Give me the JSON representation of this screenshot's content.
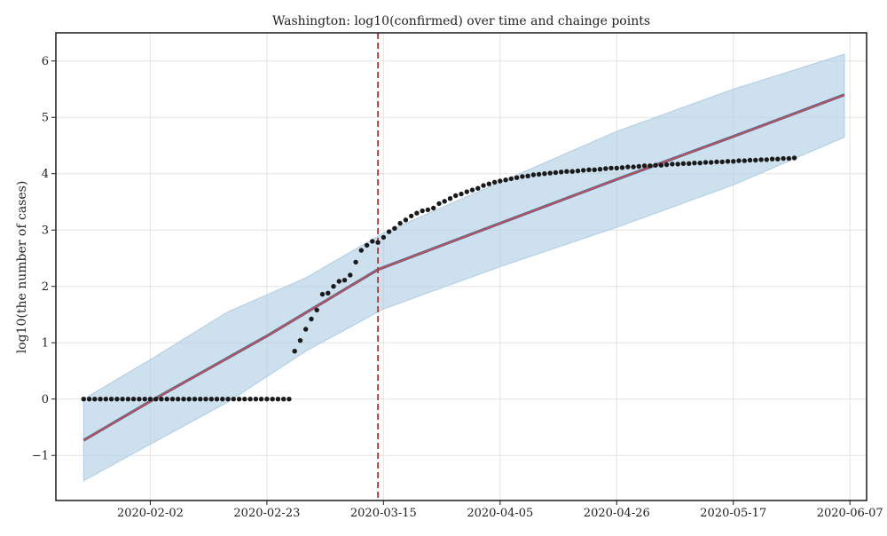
{
  "chart_data": {
    "type": "line",
    "title": "Washington: log10(confirmed) over time and chainge points",
    "xlabel": "",
    "ylabel": "log10(the number of cases)",
    "x_range": [
      "2020-01-21",
      "2020-06-06"
    ],
    "x_axis_domain": [
      "2020-01-16",
      "2020-06-10"
    ],
    "ylim": [
      -1.8,
      6.5
    ],
    "x_ticks": [
      "2020-02-02",
      "2020-02-23",
      "2020-03-15",
      "2020-04-05",
      "2020-04-26",
      "2020-05-17",
      "2020-06-07"
    ],
    "y_ticks": [
      -1,
      0,
      1,
      2,
      3,
      4,
      5,
      6
    ],
    "y_tick_labels": [
      "−1",
      "0",
      "1",
      "2",
      "3",
      "4",
      "5",
      "6"
    ],
    "grid": true,
    "changepoint_date": "2020-03-14",
    "series": [
      {
        "name": "",
        "kind": "scatter",
        "color": "#1a1a1a",
        "points": [
          [
            "2020-01-21",
            0
          ],
          [
            "2020-01-22",
            0
          ],
          [
            "2020-01-23",
            0
          ],
          [
            "2020-01-24",
            0
          ],
          [
            "2020-01-25",
            0
          ],
          [
            "2020-01-26",
            0
          ],
          [
            "2020-01-27",
            0
          ],
          [
            "2020-01-28",
            0
          ],
          [
            "2020-01-29",
            0
          ],
          [
            "2020-01-30",
            0
          ],
          [
            "2020-01-31",
            0
          ],
          [
            "2020-02-01",
            0
          ],
          [
            "2020-02-02",
            0
          ],
          [
            "2020-02-03",
            0
          ],
          [
            "2020-02-04",
            0
          ],
          [
            "2020-02-05",
            0
          ],
          [
            "2020-02-06",
            0
          ],
          [
            "2020-02-07",
            0
          ],
          [
            "2020-02-08",
            0
          ],
          [
            "2020-02-09",
            0
          ],
          [
            "2020-02-10",
            0
          ],
          [
            "2020-02-11",
            0
          ],
          [
            "2020-02-12",
            0
          ],
          [
            "2020-02-13",
            0
          ],
          [
            "2020-02-14",
            0
          ],
          [
            "2020-02-15",
            0
          ],
          [
            "2020-02-16",
            0
          ],
          [
            "2020-02-17",
            0
          ],
          [
            "2020-02-18",
            0
          ],
          [
            "2020-02-19",
            0
          ],
          [
            "2020-02-20",
            0
          ],
          [
            "2020-02-21",
            0
          ],
          [
            "2020-02-22",
            0
          ],
          [
            "2020-02-23",
            0
          ],
          [
            "2020-02-24",
            0
          ],
          [
            "2020-02-25",
            0
          ],
          [
            "2020-02-26",
            0
          ],
          [
            "2020-02-27",
            0
          ],
          [
            "2020-02-28",
            0.85
          ],
          [
            "2020-02-29",
            1.04
          ],
          [
            "2020-03-01",
            1.24
          ],
          [
            "2020-03-02",
            1.42
          ],
          [
            "2020-03-03",
            1.58
          ],
          [
            "2020-03-04",
            1.86
          ],
          [
            "2020-03-05",
            1.88
          ],
          [
            "2020-03-06",
            2.0
          ],
          [
            "2020-03-07",
            2.09
          ],
          [
            "2020-03-08",
            2.11
          ],
          [
            "2020-03-09",
            2.2
          ],
          [
            "2020-03-10",
            2.43
          ],
          [
            "2020-03-11",
            2.64
          ],
          [
            "2020-03-12",
            2.73
          ],
          [
            "2020-03-13",
            2.8
          ],
          [
            "2020-03-14",
            2.78
          ],
          [
            "2020-03-15",
            2.87
          ],
          [
            "2020-03-16",
            2.97
          ],
          [
            "2020-03-17",
            3.03
          ],
          [
            "2020-03-18",
            3.12
          ],
          [
            "2020-03-19",
            3.18
          ],
          [
            "2020-03-20",
            3.25
          ],
          [
            "2020-03-21",
            3.3
          ],
          [
            "2020-03-22",
            3.34
          ],
          [
            "2020-03-23",
            3.36
          ],
          [
            "2020-03-24",
            3.39
          ],
          [
            "2020-03-25",
            3.47
          ],
          [
            "2020-03-26",
            3.51
          ],
          [
            "2020-03-27",
            3.56
          ],
          [
            "2020-03-28",
            3.61
          ],
          [
            "2020-03-29",
            3.64
          ],
          [
            "2020-03-30",
            3.68
          ],
          [
            "2020-03-31",
            3.71
          ],
          [
            "2020-04-01",
            3.74
          ],
          [
            "2020-04-02",
            3.79
          ],
          [
            "2020-04-03",
            3.82
          ],
          [
            "2020-04-04",
            3.85
          ],
          [
            "2020-04-05",
            3.87
          ],
          [
            "2020-04-06",
            3.89
          ],
          [
            "2020-04-07",
            3.91
          ],
          [
            "2020-04-08",
            3.93
          ],
          [
            "2020-04-09",
            3.95
          ],
          [
            "2020-04-10",
            3.96
          ],
          [
            "2020-04-11",
            3.98
          ],
          [
            "2020-04-12",
            3.99
          ],
          [
            "2020-04-13",
            4.0
          ],
          [
            "2020-04-14",
            4.01
          ],
          [
            "2020-04-15",
            4.02
          ],
          [
            "2020-04-16",
            4.03
          ],
          [
            "2020-04-17",
            4.04
          ],
          [
            "2020-04-18",
            4.04
          ],
          [
            "2020-04-19",
            4.05
          ],
          [
            "2020-04-20",
            4.06
          ],
          [
            "2020-04-21",
            4.07
          ],
          [
            "2020-04-22",
            4.07
          ],
          [
            "2020-04-23",
            4.08
          ],
          [
            "2020-04-24",
            4.09
          ],
          [
            "2020-04-25",
            4.1
          ],
          [
            "2020-04-26",
            4.1
          ],
          [
            "2020-04-27",
            4.11
          ],
          [
            "2020-04-28",
            4.12
          ],
          [
            "2020-04-29",
            4.12
          ],
          [
            "2020-04-30",
            4.13
          ],
          [
            "2020-05-01",
            4.14
          ],
          [
            "2020-05-02",
            4.14
          ],
          [
            "2020-05-03",
            4.15
          ],
          [
            "2020-05-04",
            4.15
          ],
          [
            "2020-05-05",
            4.16
          ],
          [
            "2020-05-06",
            4.17
          ],
          [
            "2020-05-07",
            4.17
          ],
          [
            "2020-05-08",
            4.18
          ],
          [
            "2020-05-09",
            4.18
          ],
          [
            "2020-05-10",
            4.19
          ],
          [
            "2020-05-11",
            4.19
          ],
          [
            "2020-05-12",
            4.2
          ],
          [
            "2020-05-13",
            4.2
          ],
          [
            "2020-05-14",
            4.21
          ],
          [
            "2020-05-15",
            4.21
          ],
          [
            "2020-05-16",
            4.22
          ],
          [
            "2020-05-17",
            4.22
          ],
          [
            "2020-05-18",
            4.23
          ],
          [
            "2020-05-19",
            4.23
          ],
          [
            "2020-05-20",
            4.24
          ],
          [
            "2020-05-21",
            4.24
          ],
          [
            "2020-05-22",
            4.25
          ],
          [
            "2020-05-23",
            4.25
          ],
          [
            "2020-05-24",
            4.26
          ],
          [
            "2020-05-25",
            4.26
          ],
          [
            "2020-05-26",
            4.27
          ],
          [
            "2020-05-27",
            4.27
          ],
          [
            "2020-05-28",
            4.28
          ]
        ]
      },
      {
        "name": "",
        "kind": "line",
        "color": "#2e6fad",
        "points": [
          [
            "2020-01-21",
            -0.73
          ],
          [
            "2020-02-02",
            -0.04
          ],
          [
            "2020-02-23",
            1.12
          ],
          [
            "2020-03-14",
            2.3
          ],
          [
            "2020-04-05",
            3.12
          ],
          [
            "2020-04-26",
            3.9
          ],
          [
            "2020-05-17",
            4.66
          ],
          [
            "2020-06-06",
            5.4
          ]
        ]
      },
      {
        "name": "",
        "kind": "line",
        "color": "#c44e52",
        "points": [
          [
            "2020-01-21",
            -0.73
          ],
          [
            "2020-02-02",
            -0.04
          ],
          [
            "2020-02-23",
            1.12
          ],
          [
            "2020-03-14",
            2.3
          ],
          [
            "2020-04-05",
            3.12
          ],
          [
            "2020-04-26",
            3.9
          ],
          [
            "2020-05-17",
            4.66
          ],
          [
            "2020-06-06",
            5.4
          ]
        ]
      },
      {
        "name": "",
        "kind": "band",
        "color": "#aecde4",
        "points": [
          [
            "2020-01-21",
            -1.45,
            0.0
          ],
          [
            "2020-02-02",
            -0.8,
            0.7
          ],
          [
            "2020-02-16",
            -0.05,
            1.55
          ],
          [
            "2020-03-01",
            0.85,
            2.15
          ],
          [
            "2020-03-15",
            1.6,
            2.95
          ],
          [
            "2020-04-05",
            2.35,
            3.85
          ],
          [
            "2020-04-26",
            3.05,
            4.75
          ],
          [
            "2020-05-17",
            3.8,
            5.5
          ],
          [
            "2020-06-06",
            4.65,
            6.12
          ]
        ]
      }
    ]
  }
}
